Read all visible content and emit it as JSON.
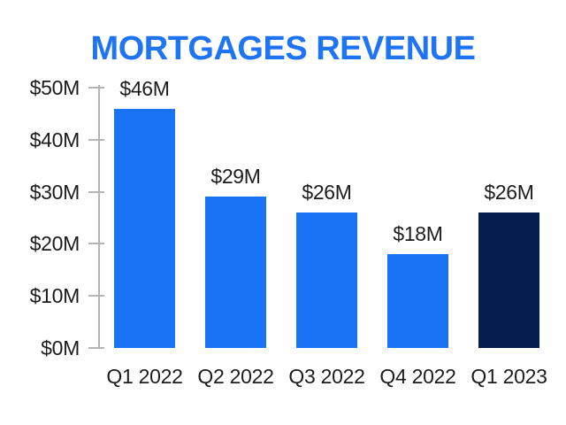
{
  "title": {
    "text": "MORTGAGES REVENUE"
  },
  "colors": {
    "background": "#FFFFFF",
    "title": "#1E74F4",
    "bar": "#1A73F5",
    "highlight_bar": "#051C4E",
    "text": "#1C1C1C",
    "axis": "#B5B5B5"
  },
  "chart_data": {
    "type": "bar",
    "title": "MORTGAGES REVENUE",
    "categories": [
      "Q1 2022",
      "Q2 2022",
      "Q3 2022",
      "Q4 2022",
      "Q1 2023"
    ],
    "values": [
      46,
      29,
      26,
      18,
      26
    ],
    "value_labels": [
      "$46M",
      "$29M",
      "$26M",
      "$18M",
      "$26M"
    ],
    "highlighted_category": "Q1 2023",
    "y_axis": {
      "ticks": [
        {
          "label": "$50M",
          "value": 50
        },
        {
          "label": "$40M",
          "value": 40
        },
        {
          "label": "$30M",
          "value": 30
        },
        {
          "label": "$20M",
          "value": 20
        },
        {
          "label": "$10M",
          "value": 10
        },
        {
          "label": "$0M",
          "value": 0
        }
      ],
      "range": [
        0,
        50
      ]
    },
    "xlabel": "",
    "ylabel": "",
    "grid": false,
    "legend": false
  }
}
